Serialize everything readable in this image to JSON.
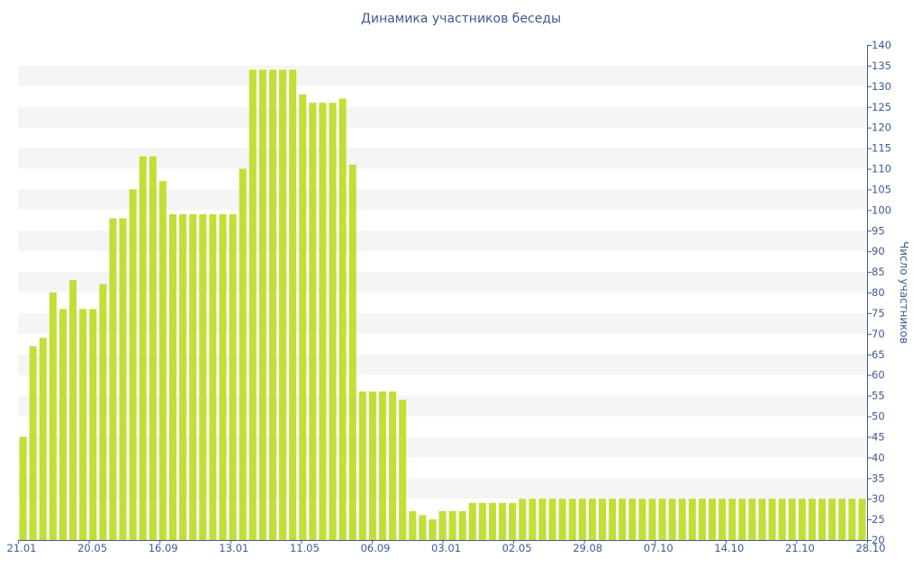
{
  "chart_data": {
    "type": "bar",
    "title": "Динамика участников беседы",
    "ylabel": "Число участников",
    "xlabel": "",
    "ylim": [
      20,
      140
    ],
    "y_ticks": [
      20,
      25,
      30,
      35,
      40,
      45,
      50,
      55,
      60,
      65,
      70,
      75,
      80,
      85,
      90,
      95,
      100,
      105,
      110,
      115,
      120,
      125,
      130,
      135,
      140
    ],
    "y_axis_position": "right",
    "x_tick_labels": [
      "21.01",
      "20.05",
      "16.09",
      "13.01",
      "11.05",
      "06.09",
      "03.01",
      "02.05",
      "29.08",
      "07.10",
      "14.10",
      "21.10",
      "28.10"
    ],
    "bar_color": "#c1df35",
    "grid": true,
    "grid_color": "#f5f5f5",
    "values": [
      45,
      67,
      69,
      80,
      76,
      83,
      76,
      76,
      82,
      98,
      98,
      105,
      113,
      113,
      107,
      99,
      99,
      99,
      99,
      99,
      99,
      99,
      110,
      134,
      134,
      134,
      134,
      134,
      128,
      126,
      126,
      126,
      127,
      111,
      56,
      56,
      56,
      56,
      54,
      27,
      26,
      25,
      27,
      27,
      27,
      29,
      29,
      29,
      29,
      29,
      30,
      30,
      30,
      30,
      30,
      30,
      30,
      30,
      30,
      30,
      30,
      30,
      30,
      30,
      30,
      30,
      30,
      30,
      30,
      30,
      30,
      30,
      30,
      30,
      30,
      30,
      30,
      30,
      30,
      30,
      30,
      30,
      30,
      30,
      30
    ]
  }
}
